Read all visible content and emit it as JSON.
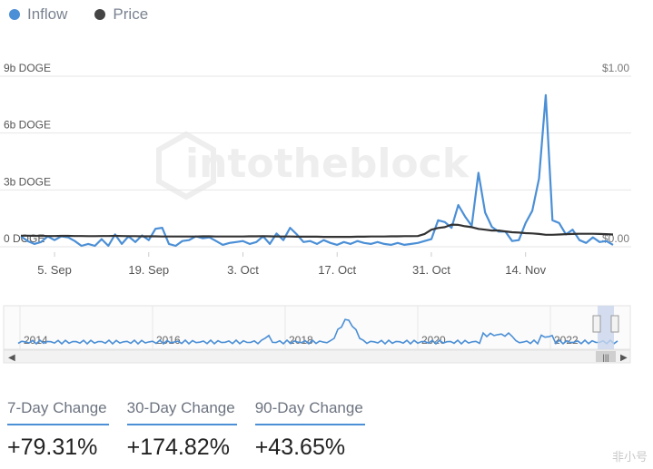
{
  "legend": [
    {
      "name": "Inflow",
      "color": "#4b8fd6"
    },
    {
      "name": "Price",
      "color": "#444444"
    }
  ],
  "watermark": "intotheblock",
  "chart_data": {
    "type": "line",
    "left_axis_ticks": [
      "0 DOGE",
      "3b DOGE",
      "6b DOGE",
      "9b DOGE"
    ],
    "left_axis_values": [
      0,
      3,
      6,
      9
    ],
    "right_axis_ticks": [
      "$0.00",
      "$1.00"
    ],
    "x_tick_labels": [
      {
        "label": "5. Sep",
        "day": 5
      },
      {
        "label": "19. Sep",
        "day": 19
      },
      {
        "label": "3. Oct",
        "day": 33
      },
      {
        "label": "17. Oct",
        "day": 47
      },
      {
        "label": "31. Oct",
        "day": 61
      },
      {
        "label": "14. Nov",
        "day": 75
      }
    ],
    "ylim": [
      0,
      9
    ],
    "series": [
      {
        "name": "Inflow",
        "color": "#4b8fd6",
        "axis": "left",
        "x_start_day": 0,
        "values": [
          0.55,
          0.3,
          0.15,
          0.25,
          0.55,
          0.35,
          0.55,
          0.5,
          0.3,
          0.05,
          0.15,
          0.05,
          0.4,
          0.05,
          0.65,
          0.15,
          0.55,
          0.25,
          0.6,
          0.35,
          0.95,
          1.0,
          0.15,
          0.05,
          0.3,
          0.35,
          0.55,
          0.45,
          0.5,
          0.3,
          0.1,
          0.2,
          0.25,
          0.3,
          0.15,
          0.25,
          0.55,
          0.15,
          0.7,
          0.35,
          1.0,
          0.65,
          0.25,
          0.3,
          0.15,
          0.35,
          0.2,
          0.1,
          0.25,
          0.15,
          0.3,
          0.2,
          0.15,
          0.25,
          0.15,
          0.1,
          0.2,
          0.1,
          0.15,
          0.2,
          0.3,
          0.4,
          1.4,
          1.3,
          1.0,
          2.2,
          1.6,
          1.1,
          3.9,
          1.8,
          1.05,
          0.8,
          0.8,
          0.3,
          0.35,
          1.25,
          1.9,
          3.6,
          8.0,
          1.4,
          1.25,
          0.65,
          0.9,
          0.35,
          0.2,
          0.5,
          0.25,
          0.3,
          0.1
        ]
      },
      {
        "name": "Price",
        "color": "#333333",
        "axis": "right",
        "x_start_day": 0,
        "values": [
          0.065,
          0.065,
          0.064,
          0.064,
          0.063,
          0.063,
          0.064,
          0.064,
          0.063,
          0.063,
          0.062,
          0.062,
          0.063,
          0.063,
          0.064,
          0.063,
          0.062,
          0.062,
          0.061,
          0.061,
          0.061,
          0.06,
          0.06,
          0.06,
          0.06,
          0.06,
          0.06,
          0.061,
          0.061,
          0.06,
          0.06,
          0.06,
          0.06,
          0.06,
          0.061,
          0.061,
          0.062,
          0.061,
          0.06,
          0.06,
          0.06,
          0.059,
          0.059,
          0.059,
          0.059,
          0.058,
          0.058,
          0.058,
          0.058,
          0.058,
          0.059,
          0.059,
          0.06,
          0.06,
          0.06,
          0.061,
          0.061,
          0.062,
          0.062,
          0.063,
          0.075,
          0.1,
          0.11,
          0.115,
          0.13,
          0.128,
          0.12,
          0.115,
          0.105,
          0.1,
          0.095,
          0.095,
          0.09,
          0.085,
          0.083,
          0.08,
          0.078,
          0.075,
          0.07,
          0.07,
          0.072,
          0.074,
          0.075,
          0.076,
          0.076,
          0.076,
          0.075,
          0.074,
          0.072
        ]
      }
    ],
    "navigator": {
      "year_labels": [
        "2014",
        "2016",
        "2018",
        "2020",
        "2022"
      ]
    }
  },
  "stats": [
    {
      "label": "7-Day Change",
      "value": "+79.31%"
    },
    {
      "label": "30-Day Change",
      "value": "+174.82%"
    },
    {
      "label": "90-Day Change",
      "value": "+43.65%"
    }
  ],
  "brand": "非小号"
}
